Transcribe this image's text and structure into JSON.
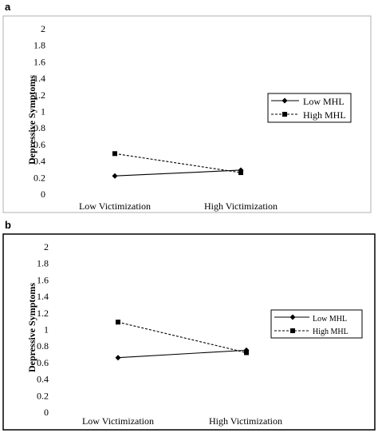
{
  "chart_data": [
    {
      "panel": "a",
      "type": "line",
      "categories": [
        "Low Victimization",
        "High Victimization"
      ],
      "ylabel": "Depressive Symptoms",
      "xlabel": "",
      "ylim": [
        0,
        2
      ],
      "yticks": [
        "0",
        "0.2",
        "0.4",
        "0.6",
        "0.8",
        "1",
        "1.2",
        "1.4",
        "1.6",
        "1.8",
        "2"
      ],
      "grid": true,
      "legend_position": "right",
      "series": [
        {
          "name": "Low MHL",
          "values": [
            0.22,
            0.29
          ],
          "marker": "diamond",
          "line": "solid",
          "color": "#000000"
        },
        {
          "name": "High MHL",
          "values": [
            0.49,
            0.26
          ],
          "marker": "square",
          "line": "dashed",
          "color": "#000000"
        }
      ]
    },
    {
      "panel": "b",
      "type": "line",
      "categories": [
        "Low Victimization",
        "High Victimization"
      ],
      "ylabel": "Depressive Symptoms",
      "xlabel": "",
      "ylim": [
        0,
        2
      ],
      "yticks": [
        "0",
        "0.2",
        "0.4",
        "0.6",
        "0.8",
        "1",
        "1.2",
        "1.4",
        "1.6",
        "1.8",
        "2"
      ],
      "grid": true,
      "legend_position": "right",
      "series": [
        {
          "name": "Low MHL",
          "values": [
            0.66,
            0.75
          ],
          "marker": "diamond",
          "line": "solid",
          "color": "#000000"
        },
        {
          "name": "High MHL",
          "values": [
            1.09,
            0.72
          ],
          "marker": "square",
          "line": "dashed",
          "color": "#000000"
        }
      ]
    }
  ]
}
